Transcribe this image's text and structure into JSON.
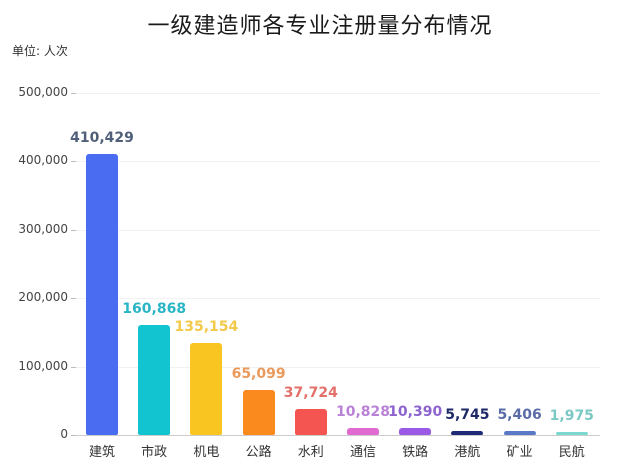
{
  "chart_data": {
    "type": "bar",
    "title": "一级建造师各专业注册量分布情况",
    "unit_label": "单位: 人次",
    "xlabel": "",
    "ylabel": "人次",
    "ylim": [
      0,
      500000
    ],
    "yticks": [
      "0",
      "100,000",
      "200,000",
      "300,000",
      "400,000",
      "500,000"
    ],
    "grid": true,
    "legend": "none",
    "categories": [
      "建筑",
      "市政",
      "机电",
      "公路",
      "水利",
      "通信",
      "铁路",
      "港航",
      "矿业",
      "民航"
    ],
    "values": [
      410429,
      160868,
      135154,
      65099,
      37724,
      10828,
      10390,
      5745,
      5406,
      1975
    ],
    "value_labels": [
      "410,429",
      "160,868",
      "135,154",
      "65,099",
      "37,724",
      "10,828",
      "10,390",
      "5,745",
      "5,406",
      "1,975"
    ],
    "colors": [
      "#4a6cf0",
      "#12c4d0",
      "#f9c520",
      "#fb8a1e",
      "#f55550",
      "#e06ad0",
      "#9a5ae6",
      "#1e2a78",
      "#5a78c8",
      "#7ad8d0"
    ],
    "label_colors": [
      "#51607a",
      "#2ab5c6",
      "#f3c94a",
      "#e99a5c",
      "#e4706a",
      "#b982d6",
      "#8d63cf",
      "#1e2a68",
      "#5a6ca8",
      "#7cc8c4"
    ]
  }
}
